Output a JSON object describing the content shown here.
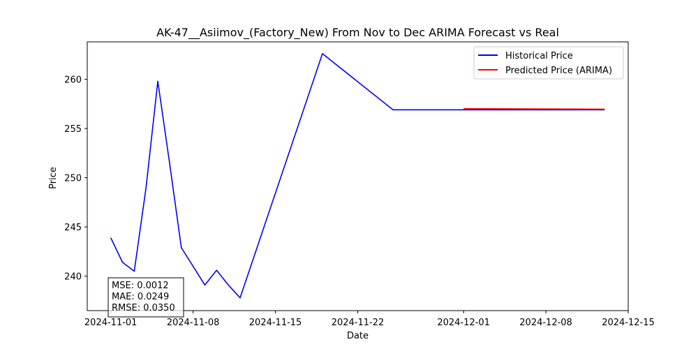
{
  "chart_data": {
    "type": "line",
    "title": "AK-47__Asiimov_(Factory_New) From Nov to Dec ARIMA Forecast vs Real",
    "xlabel": "Date",
    "ylabel": "Price",
    "xlim": [
      "2024-10-30",
      "2024-12-15"
    ],
    "ylim": [
      236.5,
      263.8
    ],
    "x_ticks": [
      "2024-11-01",
      "2024-11-08",
      "2024-11-15",
      "2024-11-22",
      "2024-12-01",
      "2024-12-08",
      "2024-12-15"
    ],
    "y_ticks": [
      240,
      245,
      250,
      255,
      260
    ],
    "grid": false,
    "legend_position": "top-right",
    "series": [
      {
        "name": "Historical Price",
        "color": "#0000ff",
        "points": [
          {
            "x": "2024-11-01",
            "y": 243.9
          },
          {
            "x": "2024-11-02",
            "y": 241.4
          },
          {
            "x": "2024-11-03",
            "y": 240.5
          },
          {
            "x": "2024-11-04",
            "y": 249.0
          },
          {
            "x": "2024-11-05",
            "y": 259.8
          },
          {
            "x": "2024-11-06",
            "y": 251.5
          },
          {
            "x": "2024-11-07",
            "y": 242.9
          },
          {
            "x": "2024-11-08",
            "y": 241.0
          },
          {
            "x": "2024-11-09",
            "y": 239.1
          },
          {
            "x": "2024-11-10",
            "y": 240.6
          },
          {
            "x": "2024-11-11",
            "y": 239.1
          },
          {
            "x": "2024-11-12",
            "y": 237.8
          },
          {
            "x": "2024-11-19",
            "y": 262.6
          },
          {
            "x": "2024-11-25",
            "y": 256.9
          },
          {
            "x": "2024-12-01",
            "y": 256.9
          },
          {
            "x": "2024-12-13",
            "y": 256.9
          }
        ]
      },
      {
        "name": "Predicted Price (ARIMA)",
        "color": "#ff0000",
        "points": [
          {
            "x": "2024-12-01",
            "y": 257.02
          },
          {
            "x": "2024-12-13",
            "y": 256.96
          }
        ]
      }
    ],
    "annotation": {
      "lines": [
        "MSE: 0.0012",
        "MAE: 0.0249",
        "RMSE: 0.0350"
      ]
    }
  }
}
